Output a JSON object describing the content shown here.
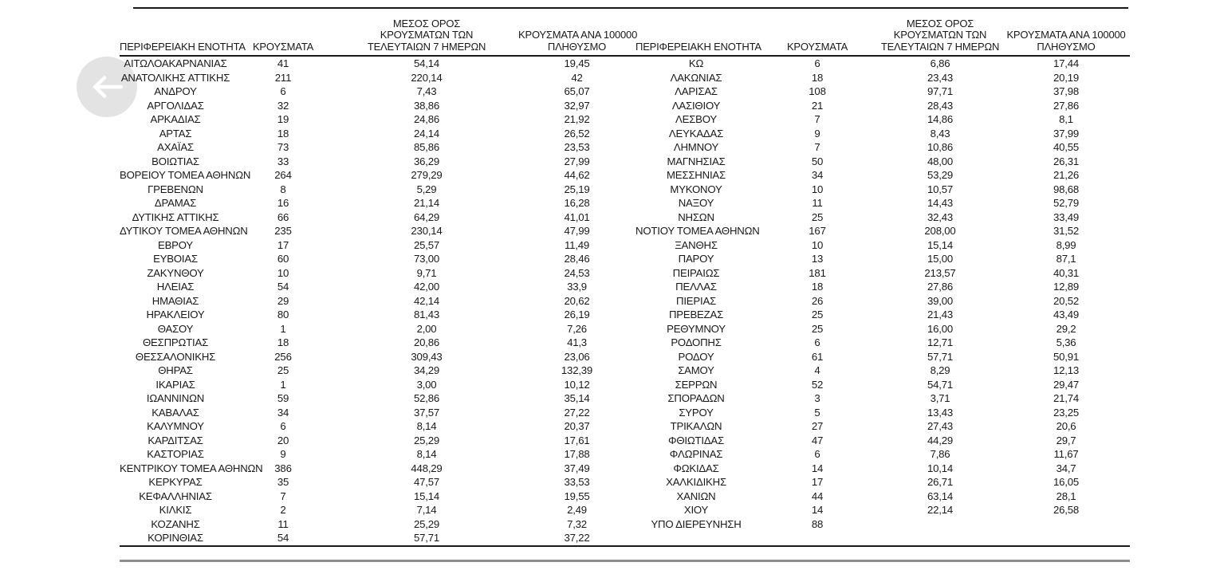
{
  "back_button": {
    "icon": "arrow-left-icon"
  },
  "table": {
    "headers": {
      "region": "ΠΕΡΙΦΕΡΕΙΑΚΗ ΕΝΟΤΗΤΑ",
      "cases": "ΚΡΟΥΣΜΑΤΑ",
      "avg7": [
        "ΜΕΣΟΣ ΟΡΟΣ",
        "ΚΡΟΥΣΜΑΤΩΝ ΤΩΝ",
        "ΤΕΛΕΥΤΑΙΩΝ 7 ΗΜΕΡΩΝ"
      ],
      "per100k": [
        "ΚΡΟΥΣΜΑΤΑ ΑΝΑ 100000",
        "ΠΛΗΘΥΣΜΟ"
      ]
    },
    "left_rows": [
      [
        "ΑΙΤΩΛΟΑΚΑΡΝΑΝΙΑΣ",
        "41",
        "54,14",
        "19,45"
      ],
      [
        "ΑΝΑΤΟΛΙΚΗΣ ΑΤΤΙΚΗΣ",
        "211",
        "220,14",
        "42"
      ],
      [
        "ΑΝΔΡΟΥ",
        "6",
        "7,43",
        "65,07"
      ],
      [
        "ΑΡΓΟΛΙΔΑΣ",
        "32",
        "38,86",
        "32,97"
      ],
      [
        "ΑΡΚΑΔΙΑΣ",
        "19",
        "24,86",
        "21,92"
      ],
      [
        "ΑΡΤΑΣ",
        "18",
        "24,14",
        "26,52"
      ],
      [
        "ΑΧΑΪΑΣ",
        "73",
        "85,86",
        "23,53"
      ],
      [
        "ΒΟΙΩΤΙΑΣ",
        "33",
        "36,29",
        "27,99"
      ],
      [
        "ΒΟΡΕΙΟΥ ΤΟΜΕΑ ΑΘΗΝΩΝ",
        "264",
        "279,29",
        "44,62"
      ],
      [
        "ΓΡΕΒΕΝΩΝ",
        "8",
        "5,29",
        "25,19"
      ],
      [
        "ΔΡΑΜΑΣ",
        "16",
        "21,14",
        "16,28"
      ],
      [
        "ΔΥΤΙΚΗΣ ΑΤΤΙΚΗΣ",
        "66",
        "64,29",
        "41,01"
      ],
      [
        "ΔΥΤΙΚΟΥ ΤΟΜΕΑ ΑΘΗΝΩΝ",
        "235",
        "230,14",
        "47,99"
      ],
      [
        "ΕΒΡΟΥ",
        "17",
        "25,57",
        "11,49"
      ],
      [
        "ΕΥΒΟΙΑΣ",
        "60",
        "73,00",
        "28,46"
      ],
      [
        "ΖΑΚΥΝΘΟΥ",
        "10",
        "9,71",
        "24,53"
      ],
      [
        "ΗΛΕΙΑΣ",
        "54",
        "42,00",
        "33,9"
      ],
      [
        "ΗΜΑΘΙΑΣ",
        "29",
        "42,14",
        "20,62"
      ],
      [
        "ΗΡΑΚΛΕΙΟΥ",
        "80",
        "81,43",
        "26,19"
      ],
      [
        "ΘΑΣΟΥ",
        "1",
        "2,00",
        "7,26"
      ],
      [
        "ΘΕΣΠΡΩΤΙΑΣ",
        "18",
        "20,86",
        "41,3"
      ],
      [
        "ΘΕΣΣΑΛΟΝΙΚΗΣ",
        "256",
        "309,43",
        "23,06"
      ],
      [
        "ΘΗΡΑΣ",
        "25",
        "34,29",
        "132,39"
      ],
      [
        "ΙΚΑΡΙΑΣ",
        "1",
        "3,00",
        "10,12"
      ],
      [
        "ΙΩΑΝΝΙΝΩΝ",
        "59",
        "52,86",
        "35,14"
      ],
      [
        "ΚΑΒΑΛΑΣ",
        "34",
        "37,57",
        "27,22"
      ],
      [
        "ΚΑΛΥΜΝΟΥ",
        "6",
        "8,14",
        "20,37"
      ],
      [
        "ΚΑΡΔΙΤΣΑΣ",
        "20",
        "25,29",
        "17,61"
      ],
      [
        "ΚΑΣΤΟΡΙΑΣ",
        "9",
        "8,14",
        "17,88"
      ],
      [
        "ΚΕΝΤΡΙΚΟΥ ΤΟΜΕΑ ΑΘΗΝΩΝ",
        "386",
        "448,29",
        "37,49"
      ],
      [
        "ΚΕΡΚΥΡΑΣ",
        "35",
        "47,57",
        "33,53"
      ],
      [
        "ΚΕΦΑΛΛΗΝΙΑΣ",
        "7",
        "15,14",
        "19,55"
      ],
      [
        "ΚΙΛΚΙΣ",
        "2",
        "7,14",
        "2,49"
      ],
      [
        "ΚΟΖΑΝΗΣ",
        "11",
        "25,29",
        "7,32"
      ],
      [
        "ΚΟΡΙΝΘΙΑΣ",
        "54",
        "57,71",
        "37,22"
      ]
    ],
    "right_rows": [
      [
        "ΚΩ",
        "6",
        "6,86",
        "17,44"
      ],
      [
        "ΛΑΚΩΝΙΑΣ",
        "18",
        "23,43",
        "20,19"
      ],
      [
        "ΛΑΡΙΣΑΣ",
        "108",
        "97,71",
        "37,98"
      ],
      [
        "ΛΑΣΙΘΙΟΥ",
        "21",
        "28,43",
        "27,86"
      ],
      [
        "ΛΕΣΒΟΥ",
        "7",
        "14,86",
        "8,1"
      ],
      [
        "ΛΕΥΚΑΔΑΣ",
        "9",
        "8,43",
        "37,99"
      ],
      [
        "ΛΗΜΝΟΥ",
        "7",
        "10,86",
        "40,55"
      ],
      [
        "ΜΑΓΝΗΣΙΑΣ",
        "50",
        "48,00",
        "26,31"
      ],
      [
        "ΜΕΣΣΗΝΙΑΣ",
        "34",
        "53,29",
        "21,26"
      ],
      [
        "ΜΥΚΟΝΟΥ",
        "10",
        "10,57",
        "98,68"
      ],
      [
        "ΝΑΞΟΥ",
        "11",
        "14,43",
        "52,79"
      ],
      [
        "ΝΗΣΩΝ",
        "25",
        "32,43",
        "33,49"
      ],
      [
        "ΝΟΤΙΟΥ ΤΟΜΕΑ ΑΘΗΝΩΝ",
        "167",
        "208,00",
        "31,52"
      ],
      [
        "ΞΑΝΘΗΣ",
        "10",
        "15,14",
        "8,99"
      ],
      [
        "ΠΑΡΟΥ",
        "13",
        "15,00",
        "87,1"
      ],
      [
        "ΠΕΙΡΑΙΩΣ",
        "181",
        "213,57",
        "40,31"
      ],
      [
        "ΠΕΛΛΑΣ",
        "18",
        "27,86",
        "12,89"
      ],
      [
        "ΠΙΕΡΙΑΣ",
        "26",
        "39,00",
        "20,52"
      ],
      [
        "ΠΡΕΒΕΖΑΣ",
        "25",
        "21,43",
        "43,49"
      ],
      [
        "ΡΕΘΥΜΝΟΥ",
        "25",
        "16,00",
        "29,2"
      ],
      [
        "ΡΟΔΟΠΗΣ",
        "6",
        "12,71",
        "5,36"
      ],
      [
        "ΡΟΔΟΥ",
        "61",
        "57,71",
        "50,91"
      ],
      [
        "ΣΑΜΟΥ",
        "4",
        "8,29",
        "12,13"
      ],
      [
        "ΣΕΡΡΩΝ",
        "52",
        "54,71",
        "29,47"
      ],
      [
        "ΣΠΟΡΑΔΩΝ",
        "3",
        "3,71",
        "21,74"
      ],
      [
        "ΣΥΡΟΥ",
        "5",
        "13,43",
        "23,25"
      ],
      [
        "ΤΡΙΚΑΛΩΝ",
        "27",
        "27,43",
        "20,6"
      ],
      [
        "ΦΘΙΩΤΙΔΑΣ",
        "47",
        "44,29",
        "29,7"
      ],
      [
        "ΦΛΩΡΙΝΑΣ",
        "6",
        "7,86",
        "11,67"
      ],
      [
        "ΦΩΚΙΔΑΣ",
        "14",
        "10,14",
        "34,7"
      ],
      [
        "ΧΑΛΚΙΔΙΚΗΣ",
        "17",
        "26,71",
        "16,05"
      ],
      [
        "ΧΑΝΙΩΝ",
        "44",
        "63,14",
        "28,1"
      ],
      [
        "ΧΙΟΥ",
        "14",
        "22,14",
        "26,58"
      ],
      [
        "ΥΠΟ ΔΙΕΡΕΥΝΗΣΗ",
        "88",
        "",
        ""
      ]
    ]
  }
}
